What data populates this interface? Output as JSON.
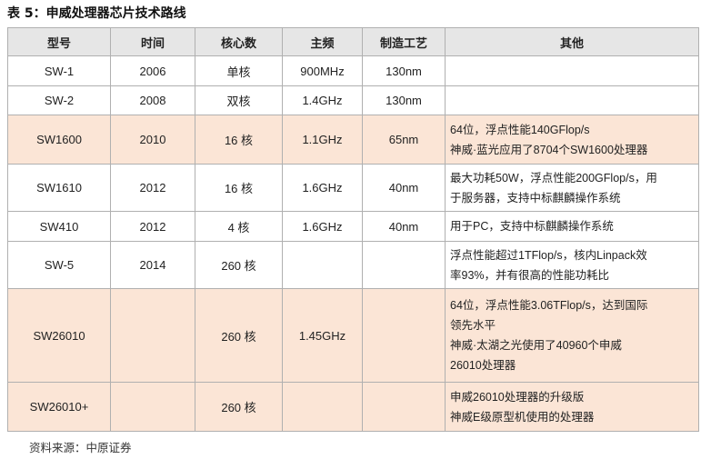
{
  "title": "表 5：申威处理器芯片技术路线",
  "headers": [
    "型号",
    "时间",
    "核心数",
    "主频",
    "制造工艺",
    "其他"
  ],
  "rows": [
    {
      "model": "SW-1",
      "year": "2006",
      "cores": "单核",
      "freq": "900MHz",
      "process": "130nm",
      "notes": [],
      "highlight": false
    },
    {
      "model": "SW-2",
      "year": "2008",
      "cores": "双核",
      "freq": "1.4GHz",
      "process": "130nm",
      "notes": [],
      "highlight": false
    },
    {
      "model": "SW1600",
      "year": "2010",
      "cores": "16 核",
      "freq": "1.1GHz",
      "process": "65nm",
      "notes": [
        "64位，浮点性能140GFlop/s",
        "神威·蓝光应用了8704个SW1600处理器"
      ],
      "highlight": true
    },
    {
      "model": "SW1610",
      "year": "2012",
      "cores": "16 核",
      "freq": "1.6GHz",
      "process": "40nm",
      "notes": [
        "最大功耗50W，浮点性能200GFlop/s，用",
        "于服务器，支持中标麒麟操作系统"
      ],
      "highlight": false
    },
    {
      "model": "SW410",
      "year": "2012",
      "cores": "4 核",
      "freq": "1.6GHz",
      "process": "40nm",
      "notes": [
        "用于PC，支持中标麒麟操作系统"
      ],
      "highlight": false
    },
    {
      "model": "SW-5",
      "year": "2014",
      "cores": "260 核",
      "freq": "",
      "process": "",
      "notes": [
        "浮点性能超过1TFlop/s，核内Linpack效",
        "率93%，并有很高的性能功耗比"
      ],
      "highlight": false
    },
    {
      "model": "SW26010",
      "year": "",
      "cores": "260 核",
      "freq": "1.45GHz",
      "process": "",
      "notes": [
        "64位，浮点性能3.06TFlop/s，达到国际",
        "领先水平",
        "神威·太湖之光使用了40960个申威",
        "26010处理器"
      ],
      "highlight": true
    },
    {
      "model": "SW26010+",
      "year": "",
      "cores": "260 核",
      "freq": "",
      "process": "",
      "notes": [
        "申威26010处理器的升级版",
        "神威E级原型机使用的处理器"
      ],
      "highlight": true
    }
  ],
  "source": "资料来源：中原证券"
}
